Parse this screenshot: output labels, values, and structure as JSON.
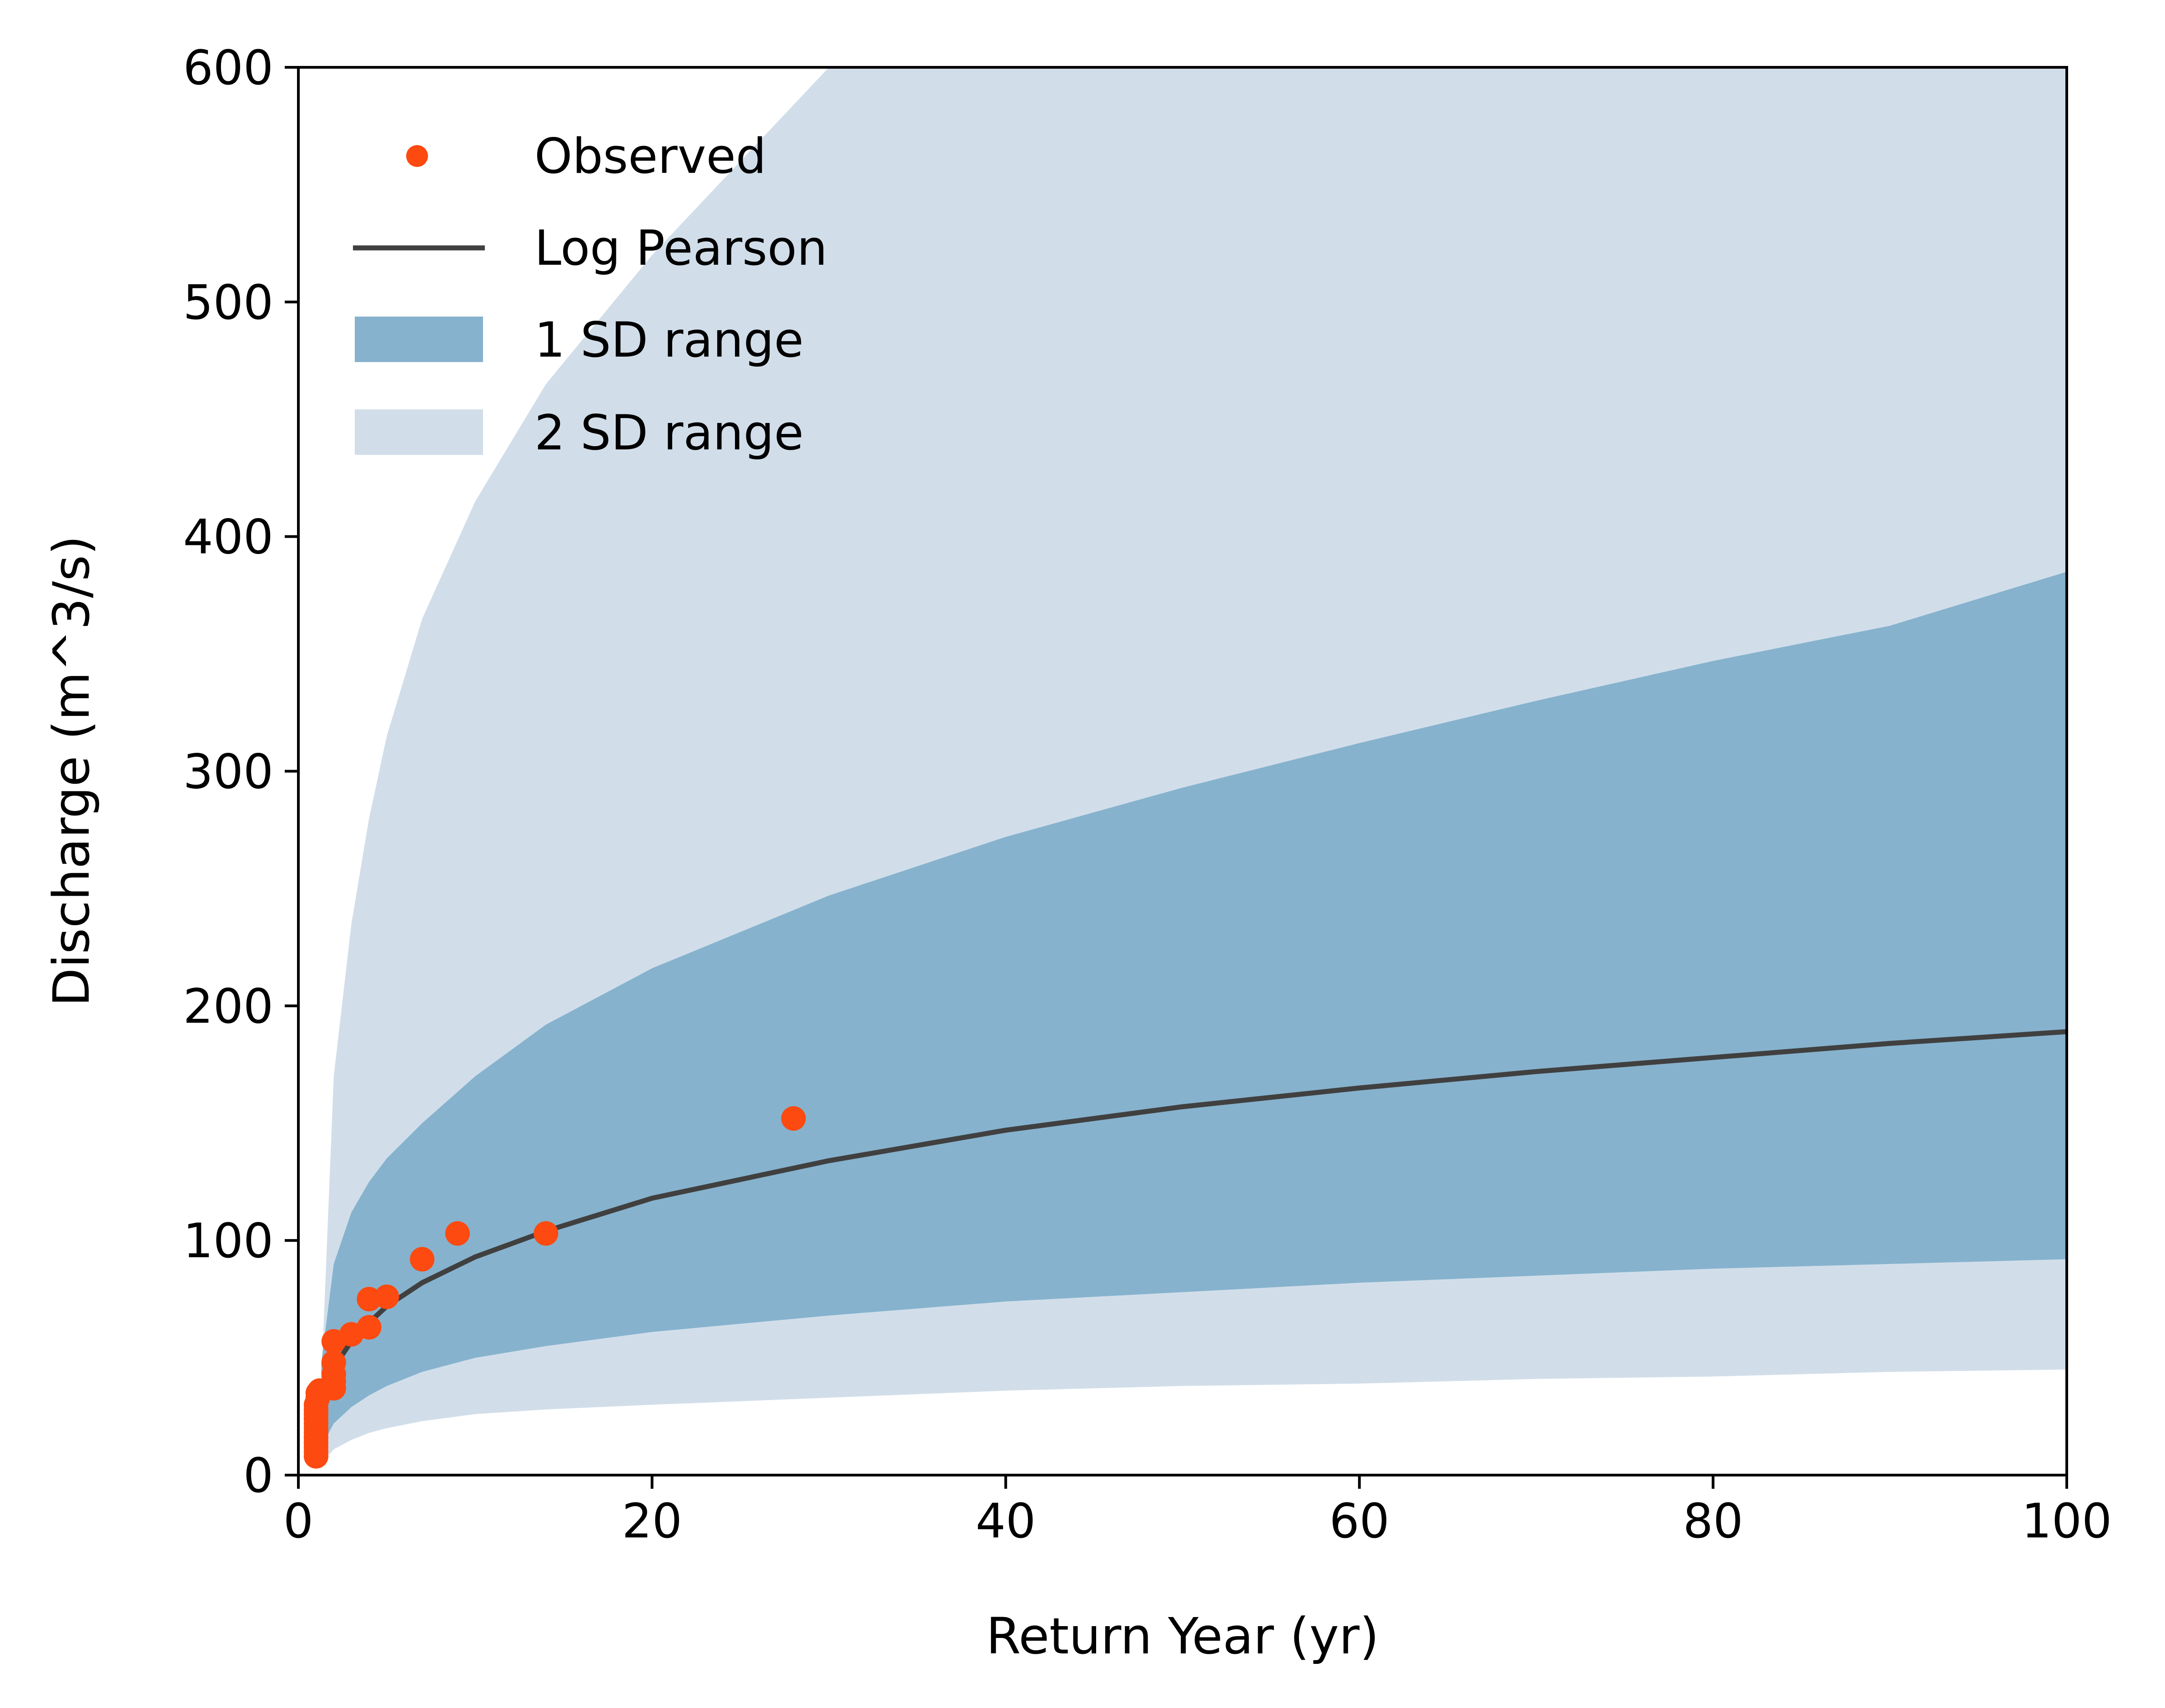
{
  "chart_data": {
    "type": "line",
    "title": "",
    "xlabel": "Return Year (yr)",
    "ylabel": "Discharge (m^3/s)",
    "xlim": [
      0,
      100
    ],
    "ylim": [
      0,
      600
    ],
    "xticks": [
      0,
      20,
      40,
      60,
      80,
      100
    ],
    "yticks": [
      0,
      100,
      200,
      300,
      400,
      500,
      600
    ],
    "xtick_labels": [
      "0",
      "20",
      "40",
      "60",
      "80",
      "100"
    ],
    "ytick_labels": [
      "0",
      "100",
      "200",
      "300",
      "400",
      "500",
      "600"
    ],
    "grid": false,
    "legend_position": "upper-left",
    "legend": [
      {
        "label": "Observed",
        "kind": "scatter",
        "color": "#fc4a10"
      },
      {
        "label": "Log Pearson",
        "kind": "line",
        "color": "#404040"
      },
      {
        "label": "1 SD range",
        "kind": "band",
        "color": "#86b2cd"
      },
      {
        "label": "2 SD range",
        "kind": "band",
        "color": "#d1deea"
      }
    ],
    "series": [
      {
        "name": "Observed",
        "type": "scatter",
        "color": "#fc4a10",
        "points": [
          [
            1.0,
            8
          ],
          [
            1.0,
            10
          ],
          [
            1.0,
            12
          ],
          [
            1.0,
            14
          ],
          [
            1.0,
            16
          ],
          [
            1.0,
            18
          ],
          [
            1.0,
            20
          ],
          [
            1.0,
            22
          ],
          [
            1.0,
            24
          ],
          [
            1.0,
            26
          ],
          [
            1.0,
            28
          ],
          [
            1.0,
            30
          ],
          [
            1.1,
            33
          ],
          [
            1.1,
            35
          ],
          [
            1.2,
            36
          ],
          [
            2.0,
            37
          ],
          [
            2.0,
            40
          ],
          [
            2.0,
            43
          ],
          [
            2.0,
            48
          ],
          [
            2.0,
            57
          ],
          [
            3.0,
            60
          ],
          [
            4.0,
            63
          ],
          [
            4.0,
            75
          ],
          [
            5.0,
            76
          ],
          [
            7.0,
            92
          ],
          [
            9.0,
            103
          ],
          [
            14.0,
            103
          ],
          [
            28.0,
            152
          ]
        ]
      },
      {
        "name": "Log Pearson",
        "type": "line",
        "color": "#404040",
        "points": [
          [
            1.3,
            30
          ],
          [
            2,
            46
          ],
          [
            3,
            57
          ],
          [
            4,
            65
          ],
          [
            5,
            72
          ],
          [
            7,
            82
          ],
          [
            10,
            93
          ],
          [
            14,
            104
          ],
          [
            20,
            118
          ],
          [
            30,
            134
          ],
          [
            40,
            147
          ],
          [
            50,
            157
          ],
          [
            60,
            165
          ],
          [
            70,
            172
          ],
          [
            80,
            178
          ],
          [
            90,
            184
          ],
          [
            100,
            189
          ]
        ]
      },
      {
        "name": "1 SD range",
        "type": "band",
        "color": "#86b2cd",
        "x": [
          1.3,
          2,
          3,
          4,
          5,
          7,
          10,
          14,
          20,
          30,
          40,
          50,
          60,
          70,
          80,
          90,
          100
        ],
        "lower": [
          12,
          22,
          29,
          34,
          38,
          44,
          50,
          55,
          61,
          68,
          74,
          78,
          82,
          85,
          88,
          90,
          92
        ],
        "upper": [
          48,
          90,
          112,
          125,
          135,
          150,
          170,
          192,
          216,
          247,
          272,
          293,
          312,
          330,
          347,
          362,
          385
        ]
      },
      {
        "name": "2 SD range",
        "type": "band",
        "color": "#d1deea",
        "x": [
          1.3,
          2,
          3,
          4,
          5,
          7,
          10,
          14,
          20,
          30,
          40,
          50,
          60,
          70,
          80,
          90,
          100
        ],
        "lower": [
          5,
          11,
          15,
          18,
          20,
          23,
          26,
          28,
          30,
          33,
          36,
          38,
          39,
          41,
          42,
          44,
          45
        ],
        "upper": [
          40,
          170,
          235,
          280,
          315,
          365,
          415,
          465,
          520,
          600,
          600,
          600,
          600,
          600,
          600,
          600,
          600
        ]
      }
    ]
  }
}
